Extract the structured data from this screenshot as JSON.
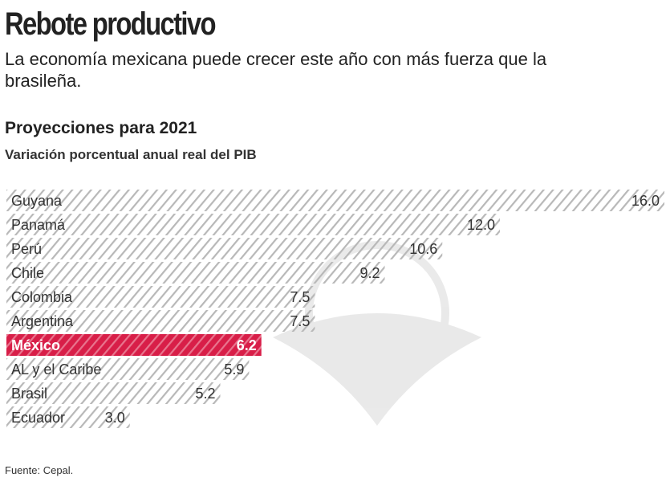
{
  "title": "Rebote productivo",
  "subtitle": "La economía mexicana puede crecer este año con más fuerza que la brasileña.",
  "source": "Fuente: Cepal.",
  "colors": {
    "highlight": "#d81e48",
    "hatch": "#b5b5b5"
  },
  "chart_data": {
    "type": "bar",
    "orientation": "horizontal",
    "title": "Proyecciones para 2021",
    "subtitle": "Variación porcentual anual real del PIB",
    "categories": [
      "Guyana",
      "Panamá",
      "Perú",
      "Chile",
      "Colombia",
      "Argentina",
      "México",
      "AL y el Caribe",
      "Brasil",
      "Ecuador"
    ],
    "values": [
      16.0,
      12.0,
      10.6,
      9.2,
      7.5,
      7.5,
      6.2,
      5.9,
      5.2,
      3.0
    ],
    "labels": [
      "16.0",
      "12.0",
      "10.6",
      "9.2",
      "7.5",
      "7.5",
      "6.2",
      "5.9",
      "5.2",
      "3.0"
    ],
    "highlight": "México",
    "xlim": [
      0,
      16
    ],
    "grid": false
  }
}
